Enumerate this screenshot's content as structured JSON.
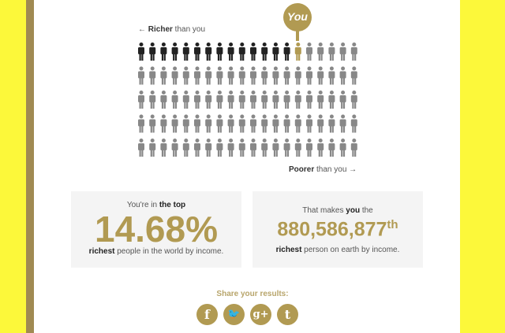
{
  "colors": {
    "background": "#fcf83a",
    "accent": "#b19a52",
    "richer": "#222222",
    "poorer": "#888888"
  },
  "graph": {
    "you_label": "You",
    "richer_bold": "Richer",
    "richer_rest": " than you",
    "richer_arrow": "←",
    "poorer_bold": "Poorer",
    "poorer_rest": " than you",
    "poorer_arrow": "→",
    "columns": 20,
    "rows": 5,
    "you_position": 15
  },
  "left_card": {
    "intro": "You're in ",
    "intro_bold": "the top",
    "value": "14.68%",
    "outro_bold": "richest",
    "outro": " people in the world by income."
  },
  "right_card": {
    "intro": "That makes ",
    "intro_bold": "you",
    "intro_end": " the",
    "value": "880,586,877",
    "suffix": "th",
    "outro_bold": "richest",
    "outro": " person on earth by income."
  },
  "share": {
    "label": "Share your results:",
    "icons": [
      {
        "name": "facebook-icon",
        "glyph": "f"
      },
      {
        "name": "twitter-icon",
        "glyph": "🐦"
      },
      {
        "name": "google-plus-icon",
        "glyph": "g+"
      },
      {
        "name": "tumblr-icon",
        "glyph": "t"
      }
    ]
  }
}
